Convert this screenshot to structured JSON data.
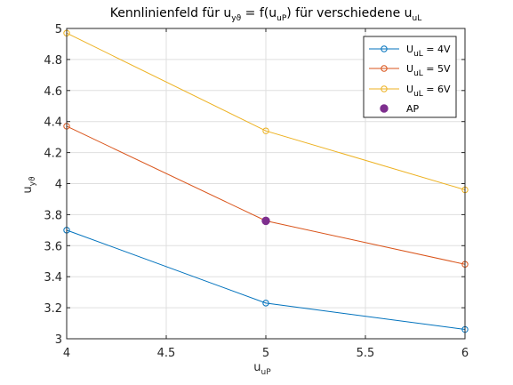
{
  "chart_data": {
    "type": "line",
    "title": {
      "prefix": "Kennlinienfeld für u",
      "sub1": "yϑ",
      "mid": " = f(u",
      "sub2": "uP",
      "suffix": ") für verschiedene u",
      "sub3": "uL"
    },
    "xlabel": {
      "main": "u",
      "sub": "uP"
    },
    "ylabel": {
      "main": "u",
      "sub": "yϑ"
    },
    "xlim": [
      4,
      6
    ],
    "ylim": [
      3,
      5
    ],
    "x_ticks": [
      4,
      4.5,
      5,
      5.5,
      6
    ],
    "y_ticks": [
      3,
      3.2,
      3.4,
      3.6,
      3.8,
      4,
      4.2,
      4.4,
      4.6,
      4.8,
      5
    ],
    "x_tick_labels": [
      "4",
      "4.5",
      "5",
      "5.5",
      "6"
    ],
    "y_tick_labels": [
      "3",
      "3.2",
      "3.4",
      "3.6",
      "3.8",
      "4",
      "4.2",
      "4.4",
      "4.6",
      "4.8",
      "5"
    ],
    "grid": true,
    "legend_position": "top-right",
    "x": [
      4,
      5,
      6
    ],
    "series": [
      {
        "name_main": "U",
        "name_sub": "uL",
        "name_suffix": " = 4V",
        "color": "#0072bd",
        "marker": "circle-open",
        "values": [
          3.7,
          3.23,
          3.06
        ]
      },
      {
        "name_main": "U",
        "name_sub": "uL",
        "name_suffix": " = 5V",
        "color": "#d95319",
        "marker": "circle-open",
        "values": [
          4.37,
          3.76,
          3.48
        ]
      },
      {
        "name_main": "U",
        "name_sub": "uL",
        "name_suffix": " = 6V",
        "color": "#edb120",
        "marker": "circle-open",
        "values": [
          4.97,
          4.34,
          3.96
        ]
      }
    ],
    "operating_point": {
      "name": "AP",
      "x": 5,
      "y": 3.76,
      "color": "#7e2f8e",
      "marker": "circle-filled"
    }
  }
}
